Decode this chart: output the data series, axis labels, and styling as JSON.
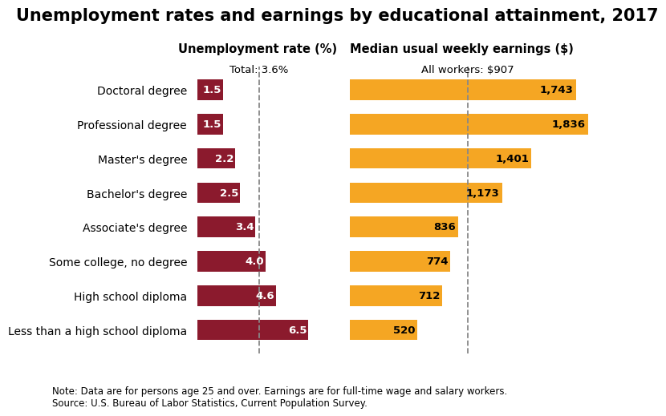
{
  "title": "Unemployment rates and earnings by educational attainment, 2017",
  "categories": [
    "Doctoral degree",
    "Professional degree",
    "Master's degree",
    "Bachelor's degree",
    "Associate's degree",
    "Some college, no degree",
    "High school diploma",
    "Less than a high school diploma"
  ],
  "unemployment_rates": [
    1.5,
    1.5,
    2.2,
    2.5,
    3.4,
    4.0,
    4.6,
    6.5
  ],
  "earnings": [
    1743,
    1836,
    1401,
    1173,
    836,
    774,
    712,
    520
  ],
  "unemp_color": "#8B1A2D",
  "earn_color": "#F5A623",
  "unemp_label": "Unemployment rate (%)",
  "earn_label": "Median usual weekly earnings ($)",
  "total_unemp_text": "Total: 3.6%",
  "all_workers_text": "All workers: $907",
  "total_unemp_val": 3.6,
  "all_workers_val": 907,
  "note_line1": "Note: Data are for persons age 25 and over. Earnings are for full-time wage and salary workers.",
  "note_line2": "Source: U.S. Bureau of Labor Statistics, Current Population Survey.",
  "background_color": "#FFFFFF",
  "title_fontsize": 15,
  "col_header_fontsize": 10.5,
  "category_fontsize": 10,
  "bar_label_fontsize": 9.5,
  "annotation_fontsize": 9.5,
  "note_fontsize": 8.5
}
